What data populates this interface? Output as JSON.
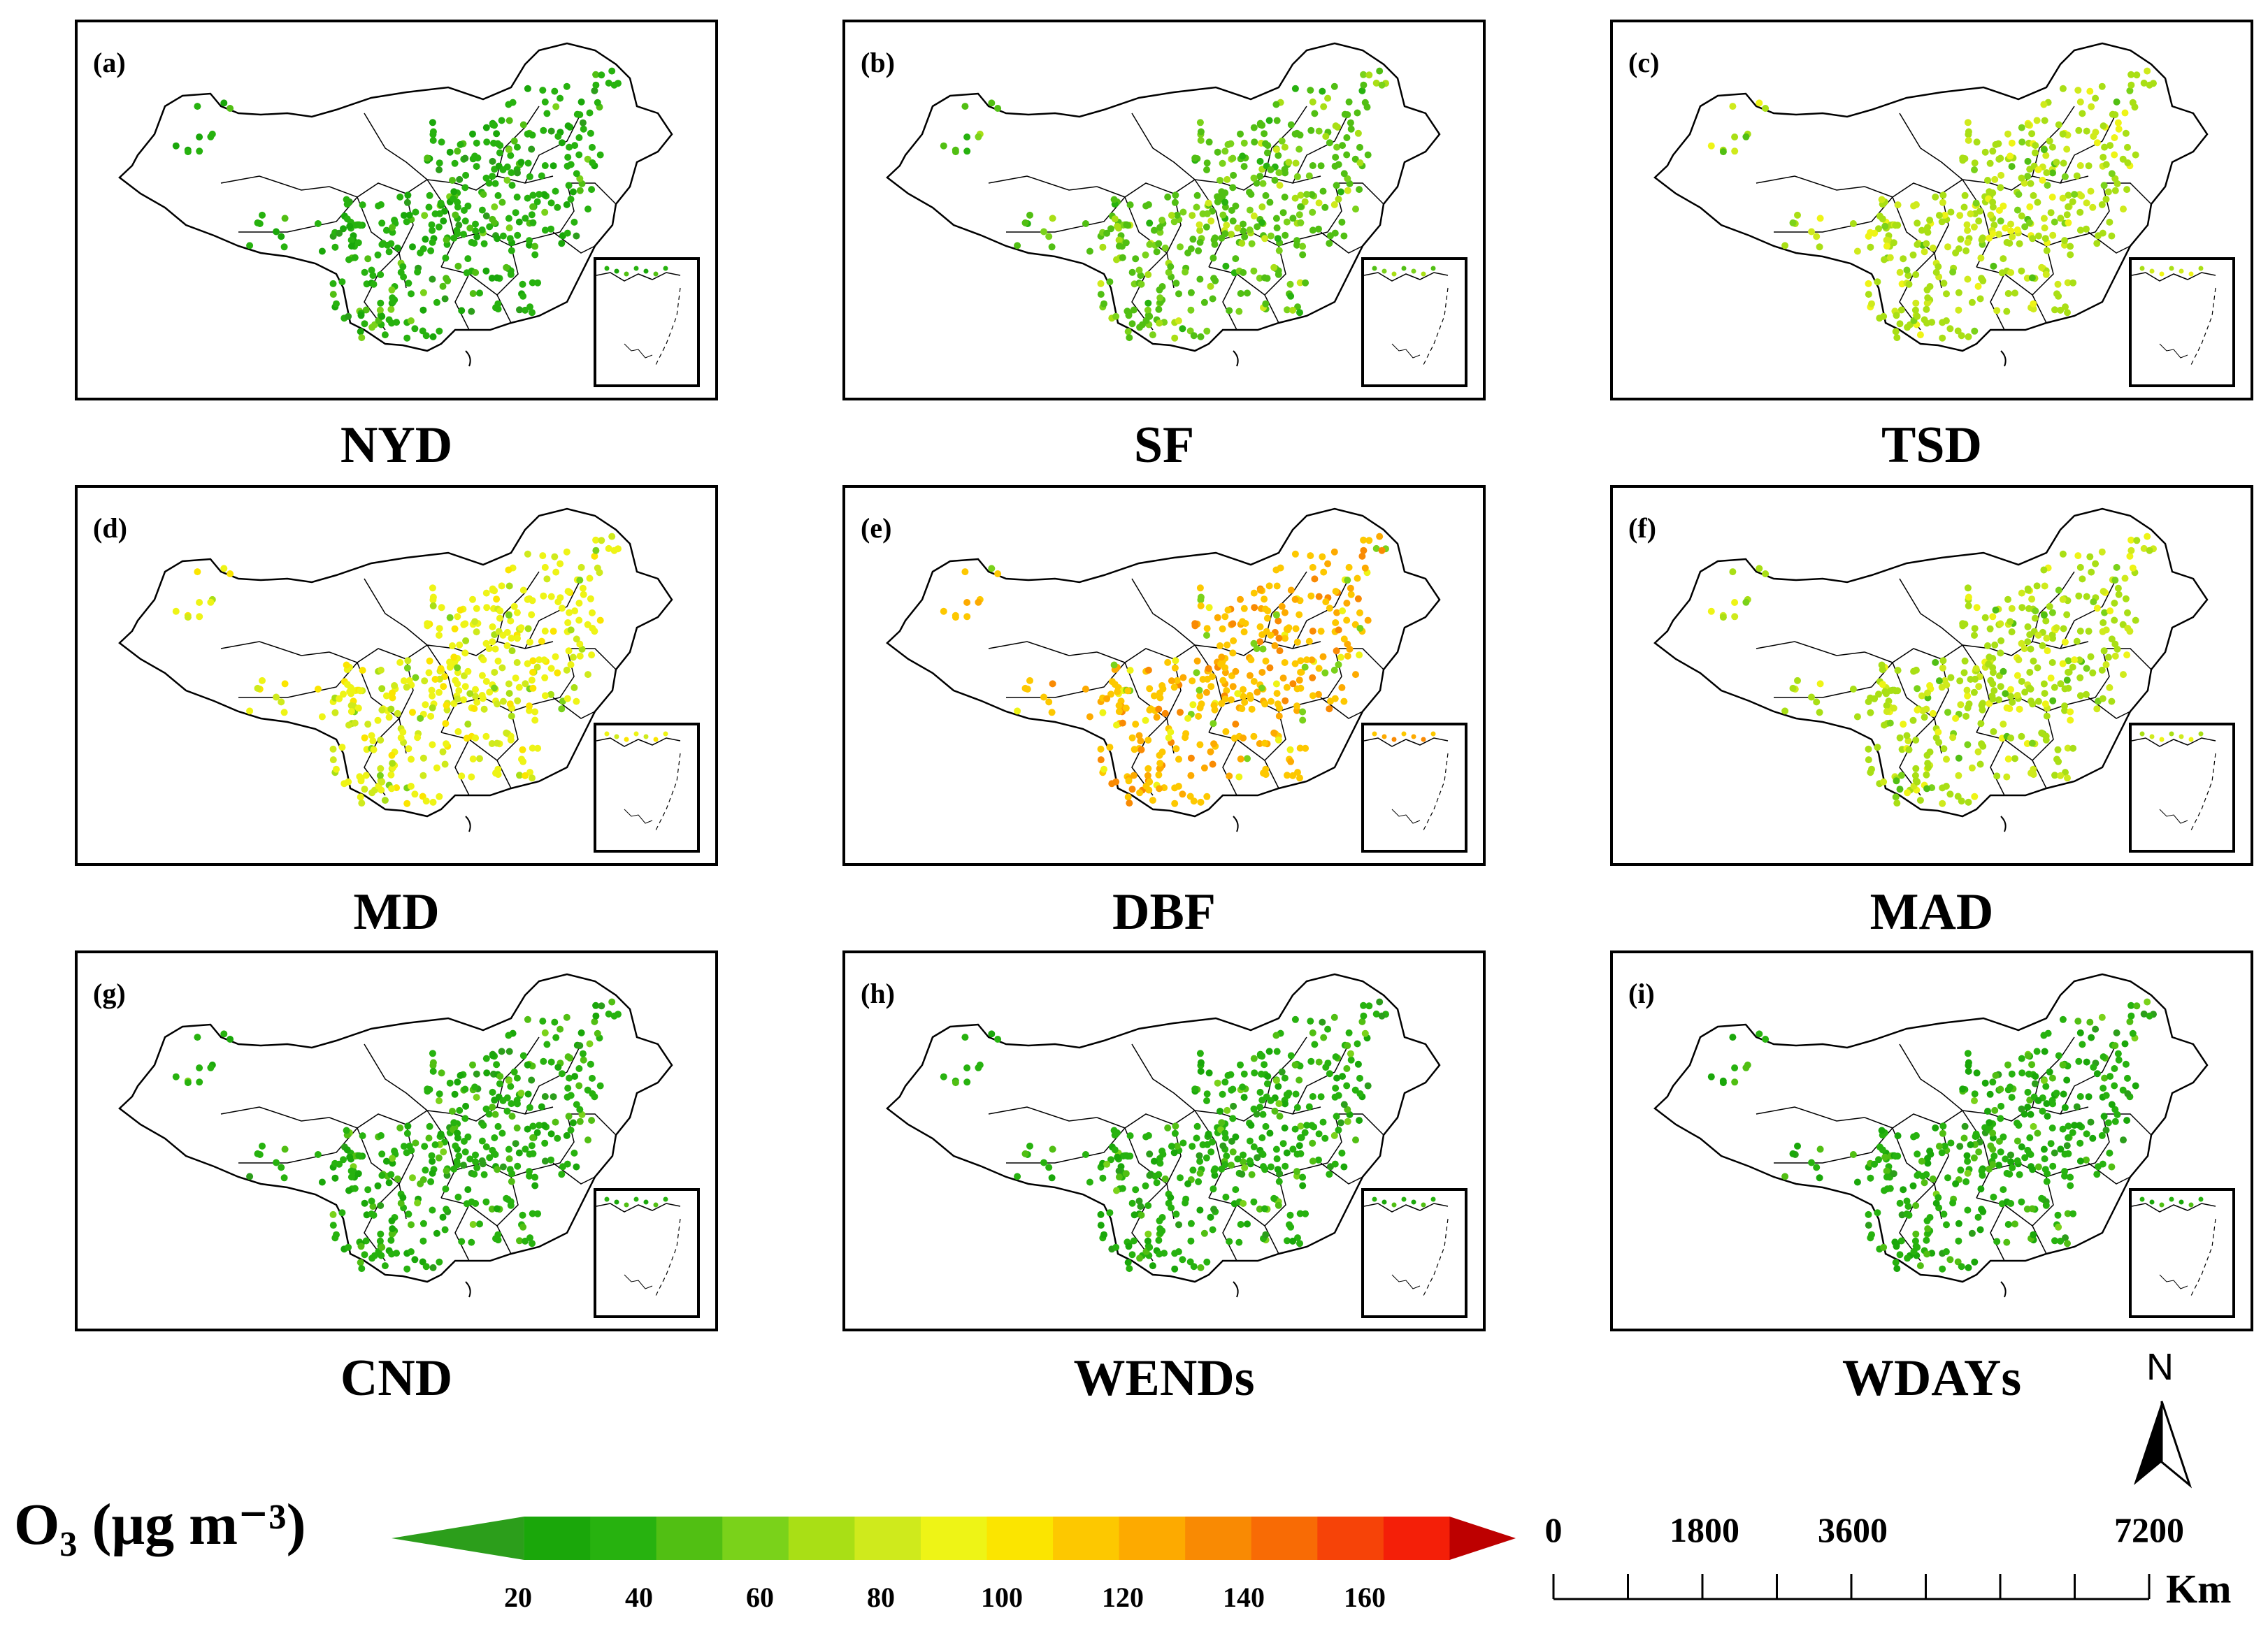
{
  "figure": {
    "pollutant_label": "O₃ (μg m⁻³)",
    "panels": [
      {
        "letter": "(a)",
        "name": "NYD",
        "dominant": "green"
      },
      {
        "letter": "(b)",
        "name": "SF",
        "dominant": "light-green"
      },
      {
        "letter": "(c)",
        "name": "TSD",
        "dominant": "yellow-green"
      },
      {
        "letter": "(d)",
        "name": "MD",
        "dominant": "yellow"
      },
      {
        "letter": "(e)",
        "name": "DBF",
        "dominant": "orange"
      },
      {
        "letter": "(f)",
        "name": "MAD",
        "dominant": "yellow-green"
      },
      {
        "letter": "(g)",
        "name": "CND",
        "dominant": "green"
      },
      {
        "letter": "(h)",
        "name": "WENDs",
        "dominant": "green"
      },
      {
        "letter": "(i)",
        "name": "WDAYs",
        "dominant": "green"
      }
    ]
  },
  "colorbar": {
    "min": 10,
    "max": 170,
    "ticks": [
      "20",
      "40",
      "60",
      "80",
      "100",
      "120",
      "140",
      "160"
    ],
    "tick_values": [
      20,
      40,
      60,
      80,
      100,
      120,
      140,
      160
    ],
    "colors": [
      "#2c9e1b",
      "#1aa70a",
      "#27b20f",
      "#51bf13",
      "#7ad21a",
      "#a9df15",
      "#cfea1c",
      "#eef416",
      "#fbe500",
      "#fdc800",
      "#fdaa00",
      "#f98a03",
      "#f86b05",
      "#f64308",
      "#f41f08",
      "#bd0000"
    ]
  },
  "scale_bar": {
    "labels": [
      "0",
      "1800",
      "3600",
      "7200"
    ],
    "values": [
      0,
      1800,
      3600,
      7200
    ],
    "unit": "Km"
  },
  "north_arrow": {
    "label": "N"
  }
}
